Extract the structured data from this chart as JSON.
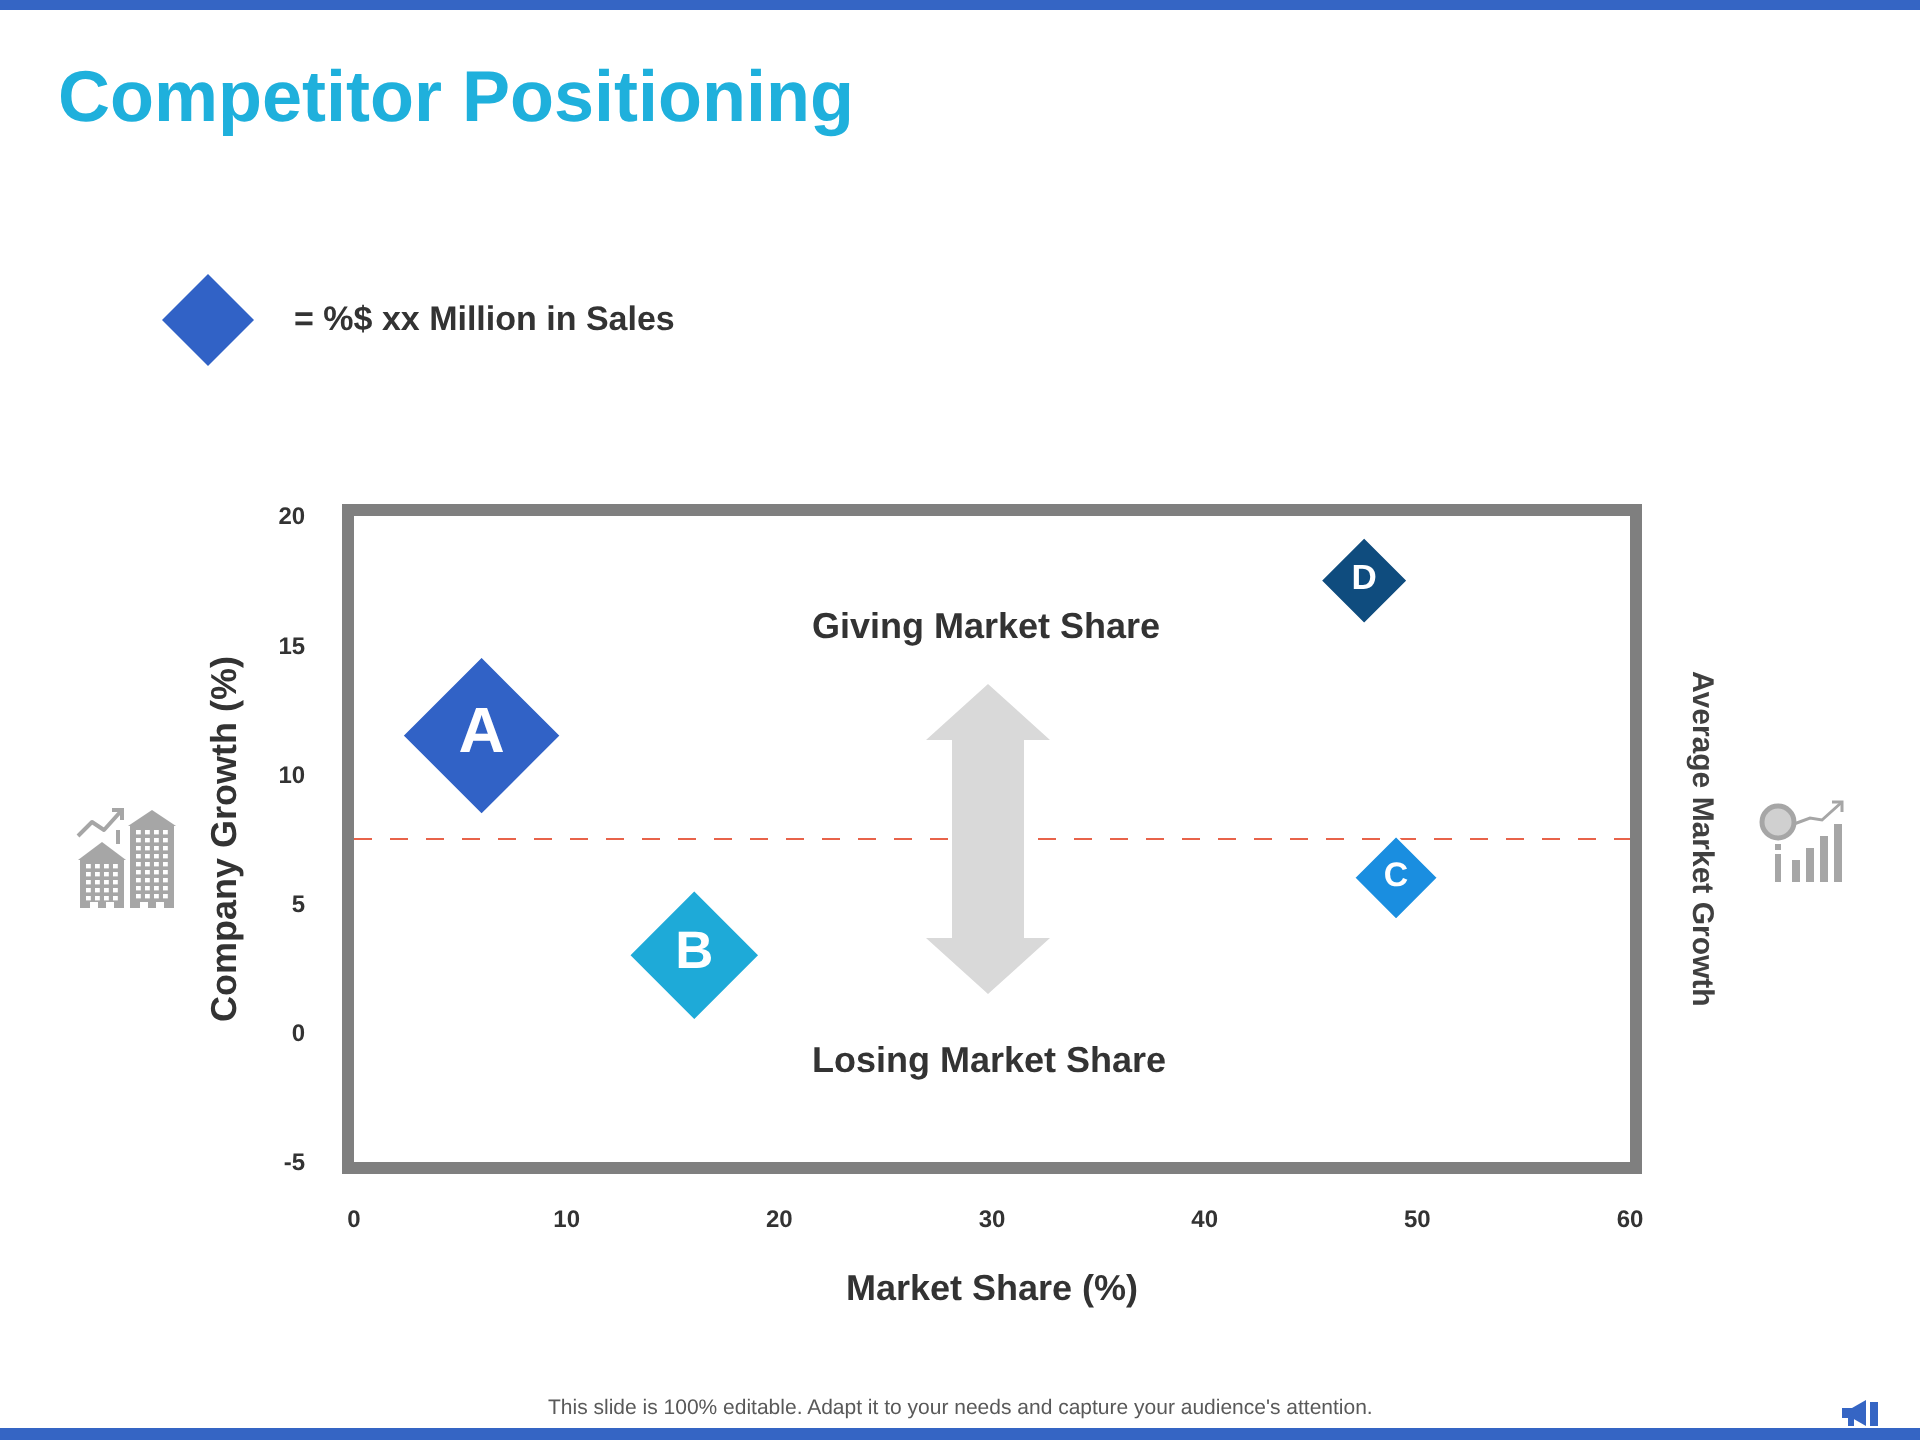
{
  "chart_data": {
    "type": "bubble",
    "title": "Competitor Positioning",
    "xlabel": "Market Share (%)",
    "ylabel": "Company Growth (%)",
    "xlim": [
      0,
      60
    ],
    "ylim": [
      -5,
      20
    ],
    "xticks": [
      0,
      10,
      20,
      30,
      40,
      50,
      60
    ],
    "yticks": [
      -5,
      0,
      5,
      10,
      15,
      20
    ],
    "marker": "diamond",
    "series": [
      {
        "name": "A",
        "color": "#3162c6",
        "x": [
          6
        ],
        "values": [
          11.5
        ],
        "sizes": [
          1
        ]
      },
      {
        "name": "B",
        "color": "#1eaad8",
        "x": [
          16
        ],
        "values": [
          3
        ],
        "sizes": [
          0.68
        ]
      },
      {
        "name": "C",
        "color": "#1a8ee0",
        "x": [
          49
        ],
        "values": [
          6
        ],
        "sizes": [
          0.28
        ]
      },
      {
        "name": "D",
        "color": "#0f4c7e",
        "x": [
          47.5
        ],
        "values": [
          17.5
        ],
        "sizes": [
          0.3
        ]
      }
    ],
    "ref_lines": [
      {
        "axis": "y",
        "value": 7.5,
        "label": "Average Market Growth",
        "color": "#e8634a",
        "line_style": "dashed"
      }
    ],
    "annotations": [
      "= %$ xx Million in Sales",
      "Giving Market Share",
      "Losing Market Share",
      "This slide is 100% editable. Adapt it to your needs and capture your audience's attention."
    ]
  }
}
